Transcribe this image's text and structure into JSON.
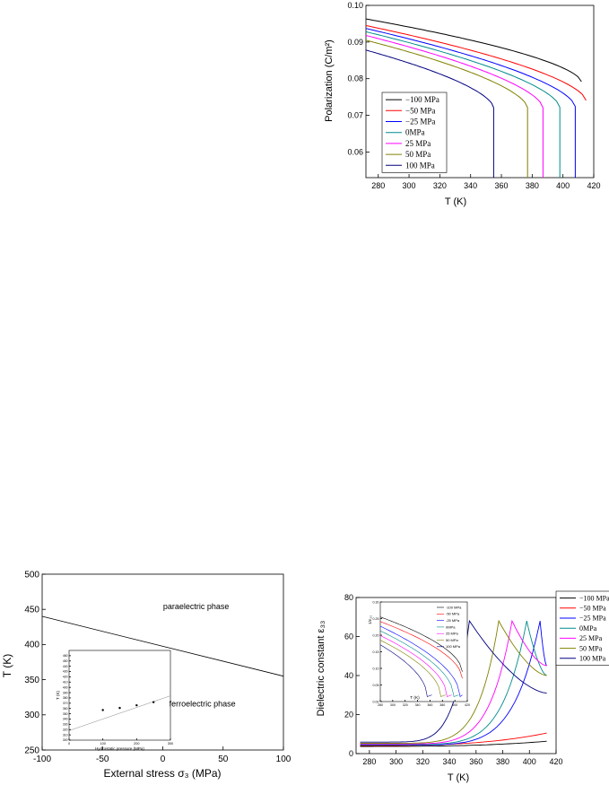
{
  "chart_data": [
    {
      "id": "polarization",
      "type": "line",
      "xlabel": "T (K)",
      "ylabel": "Polarization (C/m²)",
      "xlim": [
        272,
        420
      ],
      "ylim": [
        0.053,
        0.1
      ],
      "xticks": [
        280,
        300,
        320,
        340,
        360,
        380,
        400,
        420
      ],
      "yticks": [
        0.06,
        0.07,
        0.08,
        0.09,
        0.1
      ],
      "ytick_labels": [
        "0.06",
        "0.07",
        "0.08",
        "0.09",
        "0.10"
      ],
      "legend_position": "lower-left",
      "series": [
        {
          "name": "−100 MPa",
          "color": "#000000",
          "x0": 272,
          "y0": 0.0963,
          "tc": 412,
          "yend": 0.0792,
          "drop": false
        },
        {
          "name": "−50 MPa",
          "color": "#ff0000",
          "x0": 272,
          "y0": 0.0945,
          "tc": 415,
          "yend": 0.0741,
          "drop": false
        },
        {
          "name": "−25 MPa",
          "color": "#0000ff",
          "x0": 272,
          "y0": 0.0937,
          "tc": 408,
          "yend": 0.0724,
          "drop": true
        },
        {
          "name": "0MPa",
          "color": "#008b8b",
          "x0": 272,
          "y0": 0.0928,
          "tc": 398,
          "yend": 0.0722,
          "drop": true
        },
        {
          "name": "25 MPa",
          "color": "#ff00ff",
          "x0": 272,
          "y0": 0.0918,
          "tc": 387,
          "yend": 0.0721,
          "drop": true
        },
        {
          "name": "50 MPa",
          "color": "#808000",
          "x0": 272,
          "y0": 0.0905,
          "tc": 377,
          "yend": 0.0721,
          "drop": true
        },
        {
          "name": "100 MPa",
          "color": "#000080",
          "x0": 272,
          "y0": 0.0878,
          "tc": 355,
          "yend": 0.0721,
          "drop": true
        }
      ]
    },
    {
      "id": "phase-diagram",
      "type": "line",
      "xlabel": "External stress σ₃ (MPa)",
      "ylabel": "T (K)",
      "xlim": [
        -100,
        100
      ],
      "ylim": [
        250,
        500
      ],
      "xticks": [
        -100,
        -50,
        0,
        50,
        100
      ],
      "yticks": [
        250,
        300,
        350,
        400,
        450,
        500
      ],
      "line": {
        "x": [
          -100,
          100
        ],
        "y": [
          440,
          355
        ]
      },
      "annotations": [
        {
          "text": "paraelectric phase",
          "x": 30,
          "y": 450
        },
        {
          "text": "ferroelectric phase",
          "x": 35,
          "y": 312
        }
      ],
      "inset": {
        "xlabel": "Hydrostatic pressure (MPa)",
        "ylabel": "T (K)",
        "xlim": [
          0,
          300
        ],
        "ylim": [
          300,
          470
        ],
        "xticks": [
          0,
          100,
          200,
          300
        ],
        "yticks": [
          300,
          310,
          320,
          330,
          340,
          350,
          360,
          370,
          380,
          390,
          400,
          410,
          420,
          430,
          440,
          450,
          460
        ],
        "points": {
          "x": [
            100,
            150,
            200,
            250
          ],
          "y": [
            357,
            361,
            366,
            372
          ]
        },
        "fit": {
          "x": [
            0,
            300
          ],
          "y": [
            318,
            384
          ]
        }
      }
    },
    {
      "id": "dielectric",
      "type": "line",
      "xlabel": "T (K)",
      "ylabel": "Dielectric constant ε₃₃",
      "xlim": [
        270,
        420
      ],
      "ylim": [
        0,
        80
      ],
      "xticks": [
        280,
        300,
        320,
        340,
        360,
        380,
        400,
        420
      ],
      "yticks": [
        0,
        20,
        40,
        60,
        80
      ],
      "legend_position": "outside-top-right",
      "series": [
        {
          "name": "−100 MPa",
          "color": "#000000",
          "e0": 3.7,
          "tc": 450,
          "pk": 68,
          "after": 30,
          "xmax": 413,
          "yend": 9
        },
        {
          "name": "−50 MPa",
          "color": "#ff0000",
          "e0": 4.1,
          "tc": 440,
          "pk": 68,
          "after": 30,
          "xmax": 413,
          "yend": 15
        },
        {
          "name": "−25 MPa",
          "color": "#0000ff",
          "e0": 4.4,
          "tc": 408,
          "pk": 68,
          "after": 45,
          "xmax": 413,
          "yend": 63
        },
        {
          "name": "0MPa",
          "color": "#008b8b",
          "e0": 4.6,
          "tc": 398,
          "pk": 68,
          "after": 40,
          "xmax": 413,
          "yend": 40
        },
        {
          "name": "25 MPa",
          "color": "#ff00ff",
          "e0": 4.9,
          "tc": 387,
          "pk": 68,
          "after": 45,
          "xmax": 413,
          "yend": 45
        },
        {
          "name": "50 MPa",
          "color": "#808000",
          "e0": 5.3,
          "tc": 377,
          "pk": 68,
          "after": 40,
          "xmax": 413,
          "yend": 40
        },
        {
          "name": "100 MPa",
          "color": "#000080",
          "e0": 5.9,
          "tc": 355,
          "pk": 68,
          "after": 31,
          "xmax": 413,
          "yend": 31
        }
      ],
      "inset": {
        "xlabel": "T (K)",
        "ylabel": "1/ε₃₃",
        "xlim": [
          280,
          420
        ],
        "ylim": [
          0,
          0.3
        ],
        "xticks": [
          280,
          300,
          320,
          340,
          360,
          380,
          400,
          420
        ],
        "yticks": [
          0,
          0.05,
          0.1,
          0.15,
          0.2,
          0.25,
          0.3
        ],
        "ytick_labels": [
          "0.00",
          "0.05",
          "0.10",
          "0.15",
          "0.20",
          "0.25",
          "0.30"
        ],
        "legend": [
          "-100 MPa",
          "-50 MPa",
          "-25 MPa",
          "0MPa",
          "25 MPa",
          "50 MPa",
          "100 MPa"
        ]
      }
    }
  ]
}
